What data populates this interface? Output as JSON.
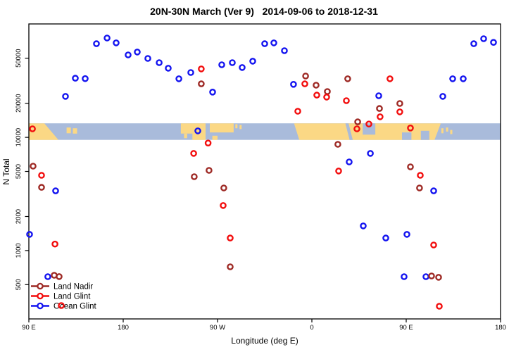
{
  "title": "20N-30N March (Ver 9)   2014-09-06 to 2018-12-31",
  "axes": {
    "x_label": "Longitude (deg E)",
    "y_label": "N Total",
    "x_range_axis_deg": [
      90,
      540
    ],
    "x_ticks": [
      {
        "pos": 90,
        "label": "90 E"
      },
      {
        "pos": 180,
        "label": "180"
      },
      {
        "pos": 270,
        "label": "90 W"
      },
      {
        "pos": 360,
        "label": "0"
      },
      {
        "pos": 450,
        "label": "90 E"
      },
      {
        "pos": 540,
        "label": "180"
      }
    ],
    "y_scale": "log",
    "y_ticks": [
      500,
      1000,
      2000,
      5000,
      10000,
      20000,
      50000
    ]
  },
  "colors": {
    "land_nadir": "#9E2A25",
    "land_glint": "#F20D0D",
    "ocean_glint": "#1414F0",
    "band_ocean": "#A9BBDB",
    "band_land": "#FBD885",
    "frame": "#000000"
  },
  "legend": {
    "items": [
      {
        "label": "Land Nadir",
        "series": "land_nadir"
      },
      {
        "label": "Land Glint",
        "series": "land_glint"
      },
      {
        "label": "Ocean Glint",
        "series": "ocean_glint"
      }
    ]
  },
  "map_band": {
    "description": "20N-30N world coastline strip drawn across the plot",
    "top_value": 13300,
    "bottom_value": 9500,
    "land_polys": [
      [
        [
          90,
          0
        ],
        [
          104.8,
          0
        ],
        [
          118.2,
          1
        ],
        [
          90,
          1
        ]
      ],
      [
        [
          126,
          0.25
        ],
        [
          130,
          0.25
        ],
        [
          130,
          0.6
        ],
        [
          126,
          0.6
        ]
      ],
      [
        [
          132,
          0.3
        ],
        [
          136,
          0.3
        ],
        [
          136,
          0.62
        ],
        [
          132,
          0.62
        ]
      ],
      [
        [
          235,
          0
        ],
        [
          258.6,
          0
        ],
        [
          258.6,
          1
        ],
        [
          246,
          1
        ],
        [
          246,
          0.62
        ],
        [
          235,
          0.62
        ]
      ],
      [
        [
          238,
          0.62
        ],
        [
          241,
          0.62
        ],
        [
          241,
          0.9
        ],
        [
          238,
          0.9
        ]
      ],
      [
        [
          262.6,
          0
        ],
        [
          285.4,
          0
        ],
        [
          285.4,
          0.55
        ],
        [
          262.6,
          0.55
        ]
      ],
      [
        [
          265,
          0.75
        ],
        [
          270,
          0.75
        ],
        [
          270,
          1
        ],
        [
          265,
          1
        ]
      ],
      [
        [
          287,
          0.05
        ],
        [
          289,
          0.05
        ],
        [
          289,
          0.3
        ],
        [
          287,
          0.3
        ]
      ],
      [
        [
          291,
          0.1
        ],
        [
          293,
          0.1
        ],
        [
          293,
          0.35
        ],
        [
          291,
          0.35
        ]
      ],
      [
        [
          343,
          0
        ],
        [
          483,
          0
        ],
        [
          477,
          1
        ],
        [
          348,
          1
        ]
      ],
      [
        [
          483.5,
          0.3
        ],
        [
          485.5,
          0.3
        ],
        [
          485.5,
          0.6
        ],
        [
          483.5,
          0.6
        ]
      ],
      [
        [
          488,
          0.25
        ],
        [
          490,
          0.25
        ],
        [
          490,
          0.5
        ],
        [
          488,
          0.5
        ]
      ],
      [
        [
          492,
          0.4
        ],
        [
          494,
          0.4
        ],
        [
          494,
          0.65
        ],
        [
          492,
          0.65
        ]
      ]
    ],
    "ocean_cutouts": [
      [
        [
          392,
          0
        ],
        [
          395,
          0
        ],
        [
          399,
          1
        ],
        [
          396,
          1
        ]
      ],
      [
        [
          408.5,
          0
        ],
        [
          420.5,
          0
        ],
        [
          420.5,
          0.68
        ],
        [
          408.5,
          0.68
        ]
      ],
      [
        [
          446,
          0.55
        ],
        [
          455,
          0.55
        ],
        [
          455,
          1
        ],
        [
          446,
          1
        ]
      ],
      [
        [
          464,
          0.45
        ],
        [
          472,
          0.45
        ],
        [
          472,
          1
        ],
        [
          464,
          1
        ]
      ]
    ]
  },
  "chart_data": {
    "type": "scatter",
    "title": "20N-30N March (Ver 9)   2014-09-06 to 2018-12-31",
    "xlabel": "Longitude (deg E)",
    "ylabel": "N Total",
    "x_axis_note": "x in axis degrees 90..540, wrapping 90E>180>90W>0>90E>180",
    "ylim_log": [
      450,
      90000
    ],
    "marker": "open-circle",
    "series": [
      {
        "name": "Ocean Glint",
        "points": [
          [
            90.7,
            1390
          ],
          [
            108.1,
            588
          ],
          [
            115.5,
            3370
          ],
          [
            124.9,
            23000
          ],
          [
            134.3,
            33300
          ],
          [
            143.7,
            33000
          ],
          [
            154.5,
            67200
          ],
          [
            164.6,
            75400
          ],
          [
            173.3,
            68300
          ],
          [
            184.7,
            53500
          ],
          [
            193.4,
            56700
          ],
          [
            203.5,
            49800
          ],
          [
            214.3,
            45700
          ],
          [
            223.0,
            40800
          ],
          [
            233.1,
            32900
          ],
          [
            244.5,
            37400
          ],
          [
            251.2,
            11400
          ],
          [
            265.3,
            25100
          ],
          [
            274.0,
            43800
          ],
          [
            284.1,
            45700
          ],
          [
            293.5,
            41400
          ],
          [
            303.6,
            47100
          ],
          [
            315.0,
            67200
          ],
          [
            323.7,
            68300
          ],
          [
            333.8,
            58300
          ],
          [
            342.5,
            29400
          ],
          [
            395.6,
            6070
          ],
          [
            409.0,
            1650
          ],
          [
            415.8,
            7210
          ],
          [
            423.8,
            23300
          ],
          [
            430.5,
            1290
          ],
          [
            448.0,
            588
          ],
          [
            450.7,
            1390
          ],
          [
            468.8,
            588
          ],
          [
            476.2,
            3370
          ],
          [
            484.9,
            23000
          ],
          [
            494.3,
            32900
          ],
          [
            504.4,
            32900
          ],
          [
            514.5,
            67200
          ],
          [
            523.9,
            74400
          ],
          [
            533.3,
            69000
          ]
        ]
      },
      {
        "name": "Land Nadir",
        "points": [
          [
            94.0,
            5570
          ],
          [
            102.1,
            3620
          ],
          [
            114.2,
            605
          ],
          [
            118.9,
            589
          ],
          [
            247.8,
            4490
          ],
          [
            254.5,
            29700
          ],
          [
            261.9,
            5110
          ],
          [
            276.0,
            3570
          ],
          [
            282.1,
            718
          ],
          [
            354.0,
            34800
          ],
          [
            364.0,
            28900
          ],
          [
            374.8,
            25400
          ],
          [
            384.8,
            8680
          ],
          [
            394.2,
            32900
          ],
          [
            403.7,
            13700
          ],
          [
            424.5,
            18000
          ],
          [
            443.9,
            19900
          ],
          [
            454.0,
            5490
          ],
          [
            462.7,
            3570
          ],
          [
            474.2,
            596
          ],
          [
            480.9,
            580
          ]
        ]
      },
      {
        "name": "Land Glint",
        "points": [
          [
            93.4,
            11900
          ],
          [
            102.1,
            4620
          ],
          [
            114.9,
            1140
          ],
          [
            120.9,
            327
          ],
          [
            247.2,
            7210
          ],
          [
            254.5,
            40200
          ],
          [
            261.0,
            8900
          ],
          [
            275.4,
            2500
          ],
          [
            282.1,
            1290
          ],
          [
            346.6,
            17000
          ],
          [
            353.3,
            29700
          ],
          [
            364.7,
            23600
          ],
          [
            374.1,
            22700
          ],
          [
            385.5,
            5040
          ],
          [
            392.9,
            21100
          ],
          [
            403.0,
            11900
          ],
          [
            414.4,
            13100
          ],
          [
            425.1,
            15200
          ],
          [
            434.5,
            32900
          ],
          [
            443.9,
            16800
          ],
          [
            454.0,
            12100
          ],
          [
            463.4,
            4620
          ],
          [
            476.2,
            1120
          ],
          [
            481.6,
            322
          ]
        ]
      }
    ]
  }
}
